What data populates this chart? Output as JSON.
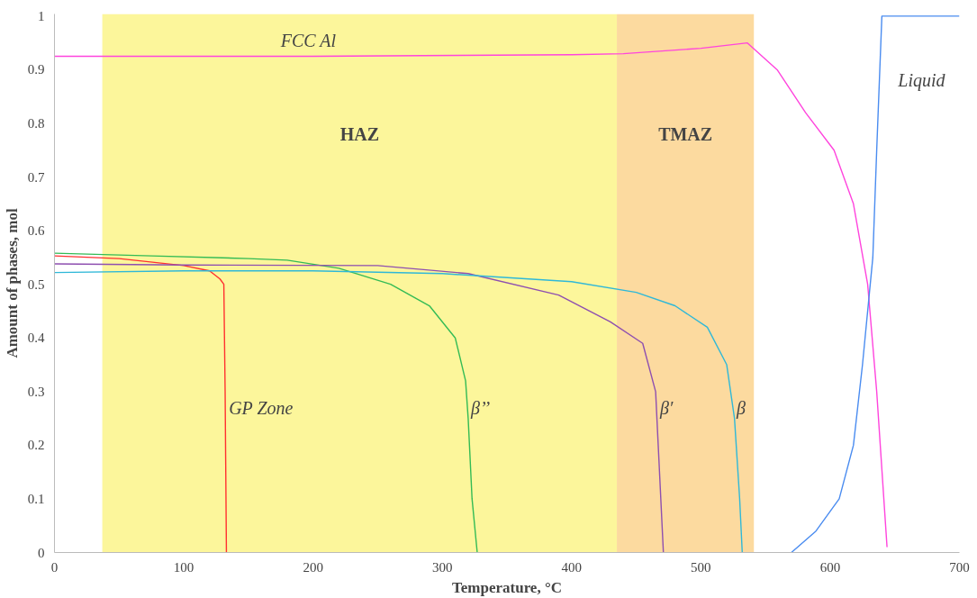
{
  "chart_data": {
    "type": "line",
    "xlabel": "Temperature, °C",
    "ylabel": "Amount of phases, mol",
    "xlim": [
      0,
      700
    ],
    "xticks": [
      0,
      100,
      200,
      300,
      400,
      500,
      600,
      700
    ],
    "ylim": [
      0,
      1
    ],
    "yticks": [
      0,
      0.1,
      0.2,
      0.3,
      0.4,
      0.5,
      0.6,
      0.7,
      0.8,
      0.9,
      1
    ],
    "grid": false,
    "legend": false,
    "marker": "none",
    "line_style": "solid",
    "bands": [
      {
        "axis": "x",
        "from": 37,
        "to": 435,
        "label": "HAZ",
        "color": "#fbf58a"
      },
      {
        "axis": "x",
        "from": 435,
        "to": 541,
        "label": "TMAZ",
        "color": "#fcd48e"
      }
    ],
    "series": [
      {
        "name": "GP Zone",
        "color": "#ff3030",
        "x": [
          0,
          50,
          100,
          120,
          128,
          131,
          132,
          133
        ],
        "values": [
          0.553,
          0.548,
          0.535,
          0.525,
          0.51,
          0.5,
          0.3,
          0
        ]
      },
      {
        "name": "β’’",
        "color": "#33bb55",
        "x": [
          0,
          75,
          150,
          180,
          220,
          260,
          290,
          310,
          318,
          320,
          323,
          327
        ],
        "values": [
          0.558,
          0.553,
          0.548,
          0.545,
          0.53,
          0.5,
          0.46,
          0.4,
          0.32,
          0.25,
          0.1,
          0
        ]
      },
      {
        "name": "β′",
        "color": "#8e4fb0",
        "x": [
          0,
          100,
          250,
          320,
          390,
          430,
          455,
          465,
          467,
          471
        ],
        "values": [
          0.538,
          0.536,
          0.535,
          0.52,
          0.48,
          0.43,
          0.39,
          0.3,
          0.2,
          0
        ]
      },
      {
        "name": "β",
        "color": "#2fb8d8",
        "x": [
          0,
          100,
          200,
          300,
          400,
          450,
          480,
          505,
          520,
          526,
          530,
          532
        ],
        "values": [
          0.522,
          0.525,
          0.525,
          0.52,
          0.505,
          0.485,
          0.46,
          0.42,
          0.35,
          0.25,
          0.1,
          0
        ]
      },
      {
        "name": "FCC Al",
        "color": "#ff44dd",
        "x": [
          0,
          200,
          400,
          440,
          500,
          536,
          559,
          581,
          603,
          618,
          629,
          636,
          644
        ],
        "values": [
          0.925,
          0.925,
          0.928,
          0.93,
          0.94,
          0.95,
          0.9,
          0.82,
          0.75,
          0.65,
          0.5,
          0.3,
          0.01
        ]
      },
      {
        "name": "Liquid",
        "color": "#4a8cf0",
        "x": [
          570,
          589,
          607,
          618,
          625,
          633,
          636,
          640,
          700
        ],
        "values": [
          0,
          0.04,
          0.1,
          0.2,
          0.35,
          0.55,
          0.75,
          1,
          1
        ]
      }
    ]
  }
}
